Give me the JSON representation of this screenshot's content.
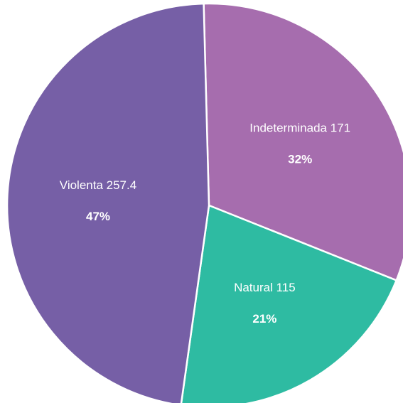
{
  "chart_data": {
    "type": "pie",
    "title": "",
    "start_angle_deg": -1.5,
    "direction": "clockwise",
    "slices": [
      {
        "name": "Indeterminada",
        "value": 171,
        "value_label": "171",
        "percent_label": "32%",
        "color": "#A66DAE"
      },
      {
        "name": "Natural",
        "value": 115,
        "value_label": "115",
        "percent_label": "21%",
        "color": "#2EBBA2"
      },
      {
        "name": "Violenta",
        "value": 257.4,
        "value_label": "257.4",
        "percent_label": "47%",
        "color": "#765FA6"
      }
    ]
  }
}
